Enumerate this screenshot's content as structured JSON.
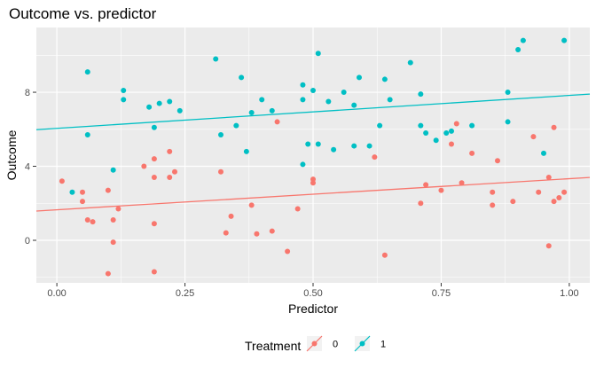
{
  "chart_data": {
    "type": "scatter",
    "title": "Outcome vs. predictor",
    "xlabel": "Predictor",
    "ylabel": "Outcome",
    "xlim": [
      -0.04,
      1.04
    ],
    "ylim": [
      -2.3,
      11.5
    ],
    "x_ticks": [
      0,
      0.25,
      0.5,
      0.75,
      1
    ],
    "x_tick_labels": [
      "0.00",
      "0.25",
      "0.50",
      "0.75",
      "1.00"
    ],
    "y_ticks": [
      0,
      4,
      8
    ],
    "y_tick_labels": [
      "0",
      "4",
      "8"
    ],
    "grid": true,
    "legend": {
      "title": "Treatment",
      "placement": "bottom",
      "entries": [
        {
          "label": "0",
          "color": "#F8766D"
        },
        {
          "label": "1",
          "color": "#00BFC4"
        }
      ]
    },
    "series": [
      {
        "name": "0",
        "color": "#F8766D",
        "trend": {
          "intercept": 1.65,
          "slope": 1.68
        },
        "points": [
          [
            0.01,
            3.2
          ],
          [
            0.05,
            2.6
          ],
          [
            0.05,
            2.1
          ],
          [
            0.06,
            1.1
          ],
          [
            0.07,
            1.0
          ],
          [
            0.1,
            -1.8
          ],
          [
            0.1,
            2.7
          ],
          [
            0.11,
            1.1
          ],
          [
            0.11,
            -0.1
          ],
          [
            0.12,
            1.7
          ],
          [
            0.17,
            4.0
          ],
          [
            0.19,
            0.9
          ],
          [
            0.19,
            -1.7
          ],
          [
            0.19,
            4.4
          ],
          [
            0.19,
            3.4
          ],
          [
            0.22,
            4.8
          ],
          [
            0.22,
            3.4
          ],
          [
            0.23,
            3.7
          ],
          [
            0.32,
            3.7
          ],
          [
            0.33,
            0.4
          ],
          [
            0.34,
            1.3
          ],
          [
            0.38,
            1.9
          ],
          [
            0.39,
            0.35
          ],
          [
            0.42,
            0.5
          ],
          [
            0.43,
            6.4
          ],
          [
            0.45,
            -0.6
          ],
          [
            0.47,
            1.7
          ],
          [
            0.5,
            3.3
          ],
          [
            0.5,
            3.1
          ],
          [
            0.62,
            4.5
          ],
          [
            0.64,
            -0.8
          ],
          [
            0.71,
            2.0
          ],
          [
            0.72,
            3.0
          ],
          [
            0.75,
            2.7
          ],
          [
            0.77,
            5.2
          ],
          [
            0.78,
            6.3
          ],
          [
            0.79,
            3.1
          ],
          [
            0.81,
            4.7
          ],
          [
            0.85,
            1.9
          ],
          [
            0.85,
            2.6
          ],
          [
            0.86,
            4.3
          ],
          [
            0.89,
            2.1
          ],
          [
            0.93,
            5.6
          ],
          [
            0.94,
            2.6
          ],
          [
            0.96,
            -0.3
          ],
          [
            0.96,
            3.4
          ],
          [
            0.97,
            6.1
          ],
          [
            0.97,
            2.1
          ],
          [
            0.98,
            2.3
          ],
          [
            0.99,
            2.6
          ]
        ]
      },
      {
        "name": "1",
        "color": "#00BFC4",
        "trend": {
          "intercept": 6.05,
          "slope": 1.78
        },
        "points": [
          [
            0.03,
            2.6
          ],
          [
            0.06,
            9.1
          ],
          [
            0.06,
            5.7
          ],
          [
            0.11,
            3.8
          ],
          [
            0.13,
            8.1
          ],
          [
            0.13,
            7.6
          ],
          [
            0.18,
            7.2
          ],
          [
            0.19,
            6.1
          ],
          [
            0.2,
            7.4
          ],
          [
            0.22,
            7.5
          ],
          [
            0.24,
            7.0
          ],
          [
            0.31,
            9.8
          ],
          [
            0.32,
            5.7
          ],
          [
            0.35,
            6.2
          ],
          [
            0.36,
            8.8
          ],
          [
            0.37,
            4.8
          ],
          [
            0.38,
            6.9
          ],
          [
            0.4,
            7.6
          ],
          [
            0.42,
            7.0
          ],
          [
            0.48,
            8.4
          ],
          [
            0.48,
            7.6
          ],
          [
            0.48,
            4.1
          ],
          [
            0.49,
            5.2
          ],
          [
            0.5,
            8.1
          ],
          [
            0.51,
            10.1
          ],
          [
            0.51,
            5.2
          ],
          [
            0.53,
            7.5
          ],
          [
            0.54,
            4.9
          ],
          [
            0.56,
            8.0
          ],
          [
            0.58,
            7.3
          ],
          [
            0.58,
            5.1
          ],
          [
            0.59,
            8.8
          ],
          [
            0.61,
            5.1
          ],
          [
            0.63,
            6.2
          ],
          [
            0.64,
            8.7
          ],
          [
            0.65,
            7.6
          ],
          [
            0.69,
            9.6
          ],
          [
            0.71,
            7.9
          ],
          [
            0.71,
            6.2
          ],
          [
            0.72,
            5.8
          ],
          [
            0.74,
            5.4
          ],
          [
            0.76,
            5.8
          ],
          [
            0.77,
            5.9
          ],
          [
            0.81,
            6.2
          ],
          [
            0.88,
            8.0
          ],
          [
            0.88,
            6.4
          ],
          [
            0.9,
            10.3
          ],
          [
            0.91,
            10.8
          ],
          [
            0.95,
            4.7
          ],
          [
            0.99,
            10.8
          ]
        ]
      }
    ]
  }
}
